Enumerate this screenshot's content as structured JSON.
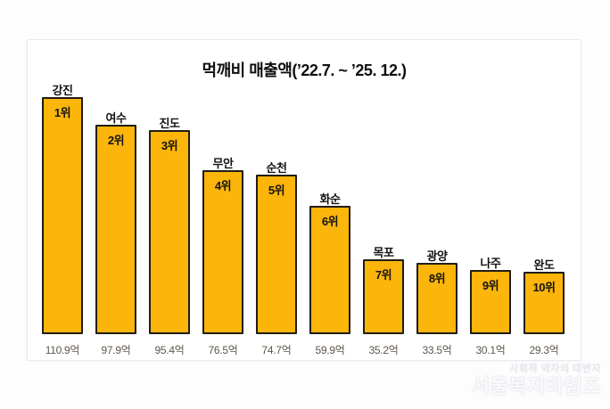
{
  "chart_data": {
    "type": "bar",
    "title": "먹깨비 매출액(’22.7. ~ ’25. 12.)",
    "categories": [
      "강진",
      "여수",
      "진도",
      "무안",
      "순천",
      "화순",
      "목포",
      "광양",
      "나주",
      "완도"
    ],
    "ranks": [
      "1위",
      "2위",
      "3위",
      "4위",
      "5위",
      "6위",
      "7위",
      "8위",
      "9위",
      "10위"
    ],
    "values": [
      110.9,
      97.9,
      95.4,
      76.5,
      74.7,
      59.9,
      35.2,
      33.5,
      30.1,
      29.3
    ],
    "value_labels": [
      "110.9억",
      "97.9억",
      "95.4억",
      "76.5억",
      "74.7억",
      "59.9억",
      "35.2억",
      "33.5억",
      "30.1억",
      "29.3억"
    ],
    "unit": "억",
    "ylim": [
      0,
      112
    ],
    "grid": false,
    "legend": false,
    "bar_color": "#FBB50B",
    "bar_border_color": "#201d16"
  },
  "watermark": {
    "slogan": "사회적 약자의 대변자",
    "name": "서울복지타임즈"
  }
}
